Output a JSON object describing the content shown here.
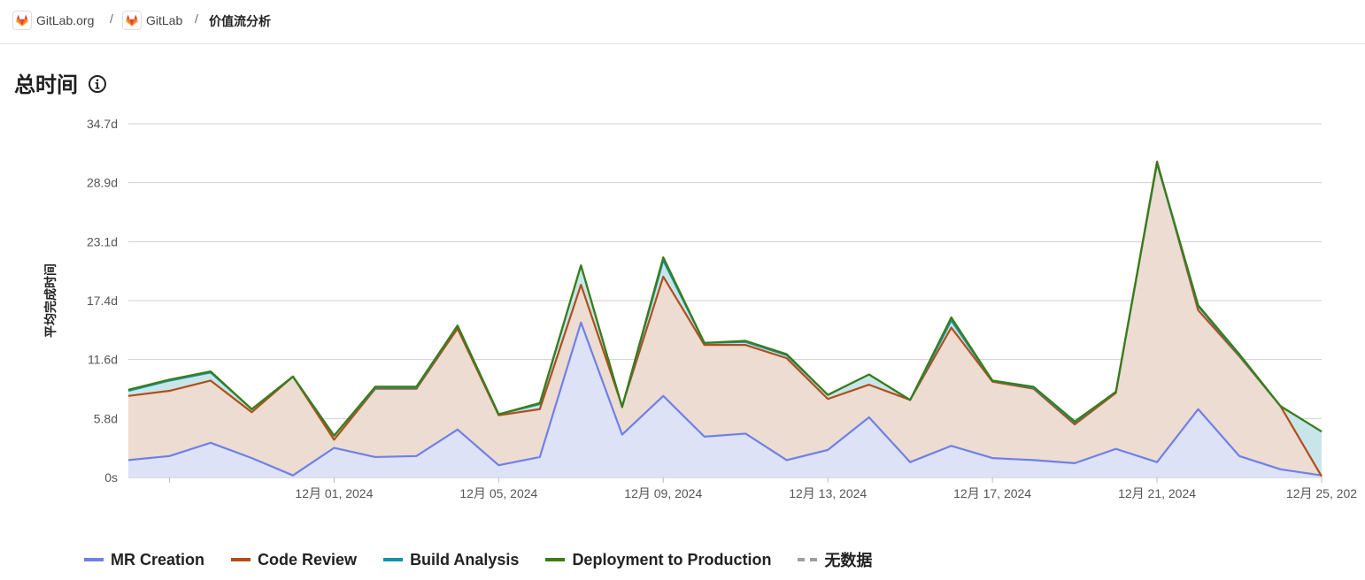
{
  "breadcrumb": {
    "items": [
      {
        "label": "GitLab.org"
      },
      {
        "label": "GitLab"
      }
    ],
    "separator": "/",
    "current": "价值流分析"
  },
  "page": {
    "title": "总时间",
    "info_icon": "info-icon"
  },
  "chart_data": {
    "type": "area",
    "stacked": true,
    "ylabel": "平均完成时间",
    "y_ticks": [
      "0s",
      "5.8d",
      "11.6d",
      "17.4d",
      "23.1d",
      "28.9d",
      "34.7d"
    ],
    "ylim": [
      0,
      34.7
    ],
    "x_ticks": [
      "12月 01, 2024",
      "12月 05, 2024",
      "12月 09, 2024",
      "12月 13, 2024",
      "12月 17, 2024",
      "12月 21, 2024",
      "12月 25, 202"
    ],
    "x_start": "2024-11-26",
    "x_end": "2024-12-25",
    "grid": true,
    "series": [
      {
        "name": "MR Creation",
        "color": "#6f80e8",
        "values": [
          1.7,
          2.1,
          3.4,
          1.9,
          0.2,
          2.9,
          2.0,
          2.1,
          4.7,
          1.2,
          2.0,
          15.2,
          4.2,
          8.0,
          4.0,
          4.3,
          1.7,
          2.7,
          5.9,
          1.5,
          3.1,
          1.9,
          1.7,
          1.4,
          2.8,
          1.5,
          6.7,
          2.1,
          0.8,
          0.2
        ]
      },
      {
        "name": "Code Review",
        "color": "#b14e1b",
        "values": [
          8.0,
          8.5,
          9.5,
          6.4,
          9.9,
          3.7,
          8.7,
          8.7,
          14.6,
          6.1,
          6.7,
          18.9,
          7.0,
          19.7,
          13.0,
          13.0,
          11.7,
          7.7,
          9.1,
          7.6,
          14.7,
          9.4,
          8.7,
          5.2,
          8.3,
          31.0,
          16.4,
          11.9,
          7.0,
          0.1
        ]
      },
      {
        "name": "Build Analysis",
        "color": "#1592a8",
        "values": [
          8.5,
          9.5,
          10.3,
          6.7,
          9.9,
          4.1,
          8.8,
          8.8,
          14.9,
          6.2,
          7.2,
          20.8,
          6.9,
          21.3,
          13.2,
          13.3,
          12.0,
          8.1,
          10.1,
          7.6,
          15.4,
          9.5,
          8.8,
          5.4,
          8.4,
          30.8,
          16.8,
          12.0,
          7.0,
          4.5
        ]
      },
      {
        "name": "Deployment to Production",
        "color": "#3a7d16",
        "values": [
          8.6,
          9.6,
          10.4,
          6.7,
          9.9,
          4.1,
          8.9,
          8.9,
          14.9,
          6.2,
          7.3,
          20.8,
          6.9,
          21.6,
          13.2,
          13.4,
          12.1,
          8.1,
          10.1,
          7.6,
          15.7,
          9.5,
          8.9,
          5.5,
          8.4,
          30.9,
          16.9,
          12.1,
          7.0,
          4.5
        ]
      },
      {
        "name": "无数据",
        "color": "#9e9e9e",
        "values": []
      }
    ]
  }
}
